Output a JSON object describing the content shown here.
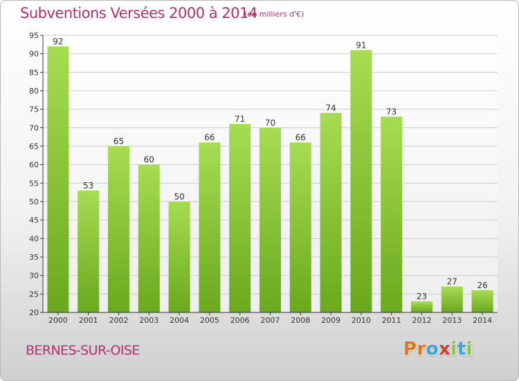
{
  "title": "Subventions Versées 2000 à 2014",
  "subtitle": "(en milliers d'€)",
  "commune": "BERNES-SUR-OISE",
  "logo": {
    "letters": [
      "P",
      "r",
      "o",
      "x",
      "i",
      "t",
      "i"
    ],
    "colors": [
      "#e8731d",
      "#e8731d",
      "#3aa3d8",
      "#d63a2a",
      "#8cc63f",
      "#3aa3d8",
      "#8cc63f"
    ]
  },
  "colors": {
    "title": "#b0306a",
    "bar_top": "#a6dc52",
    "bar_bottom": "#6aa81c",
    "grid": "#cccccc",
    "axis": "#333333"
  },
  "chart_data": {
    "type": "bar",
    "categories": [
      "2000",
      "2001",
      "2002",
      "2003",
      "2004",
      "2005",
      "2006",
      "2007",
      "2008",
      "2009",
      "2010",
      "2011",
      "2012",
      "2013",
      "2014"
    ],
    "values": [
      92,
      53,
      65,
      60,
      50,
      66,
      71,
      70,
      66,
      74,
      91,
      73,
      23,
      27,
      26
    ],
    "ylim": [
      20,
      95
    ],
    "yticks": [
      20,
      25,
      30,
      35,
      40,
      45,
      50,
      55,
      60,
      65,
      70,
      75,
      80,
      85,
      90,
      95
    ],
    "grid": true,
    "data_labels": true
  }
}
